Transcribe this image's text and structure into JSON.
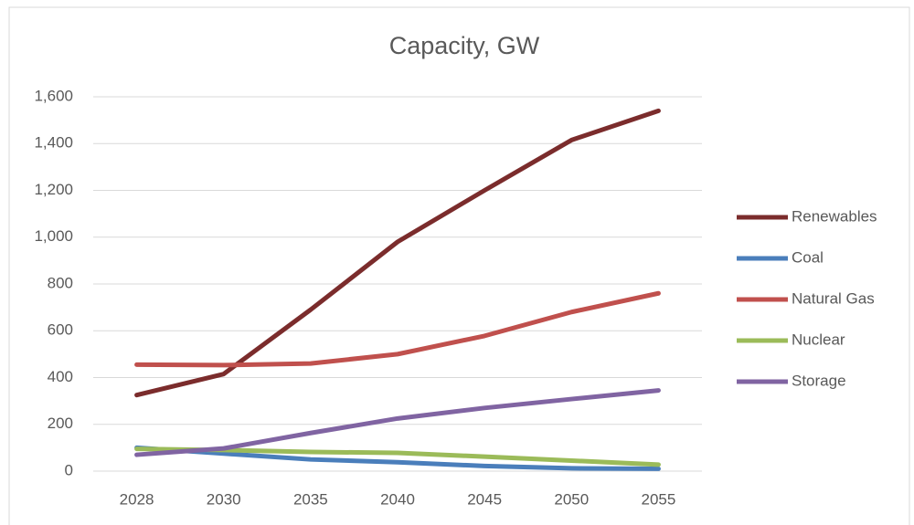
{
  "chart_data": {
    "type": "line",
    "title": "Capacity, GW",
    "categories": [
      "2028",
      "2030",
      "2035",
      "2040",
      "2045",
      "2050",
      "2055"
    ],
    "series": [
      {
        "name": "Renewables",
        "color": "#7b2c2c",
        "values": [
          325,
          415,
          690,
          980,
          1200,
          1415,
          1540
        ]
      },
      {
        "name": "Coal",
        "color": "#4a7ebb",
        "values": [
          100,
          75,
          50,
          38,
          22,
          12,
          10
        ]
      },
      {
        "name": "Natural Gas",
        "color": "#c0504d",
        "values": [
          455,
          453,
          460,
          500,
          578,
          680,
          760
        ]
      },
      {
        "name": "Nuclear",
        "color": "#9bbb59",
        "values": [
          95,
          90,
          82,
          78,
          62,
          45,
          28
        ]
      },
      {
        "name": "Storage",
        "color": "#8064a2",
        "values": [
          70,
          97,
          163,
          225,
          270,
          308,
          345
        ]
      }
    ],
    "ylim": [
      0,
      1600
    ],
    "yticks": [
      0,
      200,
      400,
      600,
      800,
      {
        "value": 1000,
        "label": "1,000"
      },
      {
        "value": 1200,
        "label": "1,200"
      },
      {
        "value": 1400,
        "label": "1,400"
      },
      {
        "value": 1600,
        "label": "1,600"
      }
    ],
    "grid": true,
    "legend": "right"
  }
}
